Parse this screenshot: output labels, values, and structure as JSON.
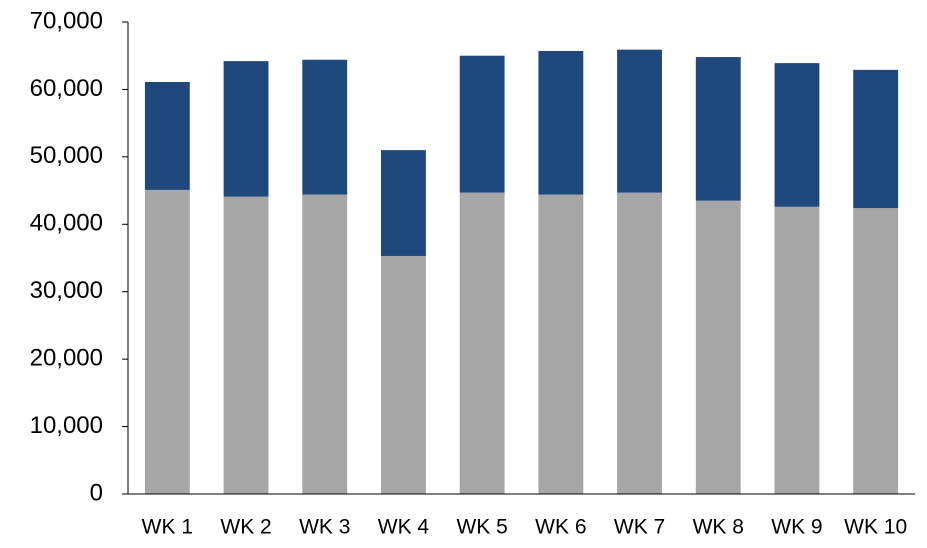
{
  "chart_data": {
    "type": "stacked_bar",
    "categories": [
      "WK 1",
      "WK 2",
      "WK 3",
      "WK 4",
      "WK 5",
      "WK 6",
      "WK 7",
      "WK 8",
      "WK 9",
      "WK 10"
    ],
    "series": [
      {
        "color": "#a6a6a6",
        "values": [
          45100,
          44100,
          44400,
          35300,
          44700,
          44400,
          44700,
          43500,
          42600,
          42400
        ]
      },
      {
        "color": "#1f497d",
        "values": [
          16000,
          20100,
          20000,
          15700,
          20300,
          21300,
          21200,
          21300,
          21300,
          20500
        ]
      }
    ],
    "ylim": [
      0,
      70000
    ],
    "yticks": [
      0,
      {
        "value": 10000,
        "label": "10,000"
      },
      {
        "value": 20000,
        "label": "20,000"
      },
      {
        "value": 30000,
        "label": "30,000"
      },
      {
        "value": 40000,
        "label": "40,000"
      },
      {
        "value": 50000,
        "label": "50,000"
      },
      {
        "value": 60000,
        "label": "60,000"
      },
      {
        "value": 70000,
        "label": "70,000"
      }
    ],
    "grid": false
  }
}
